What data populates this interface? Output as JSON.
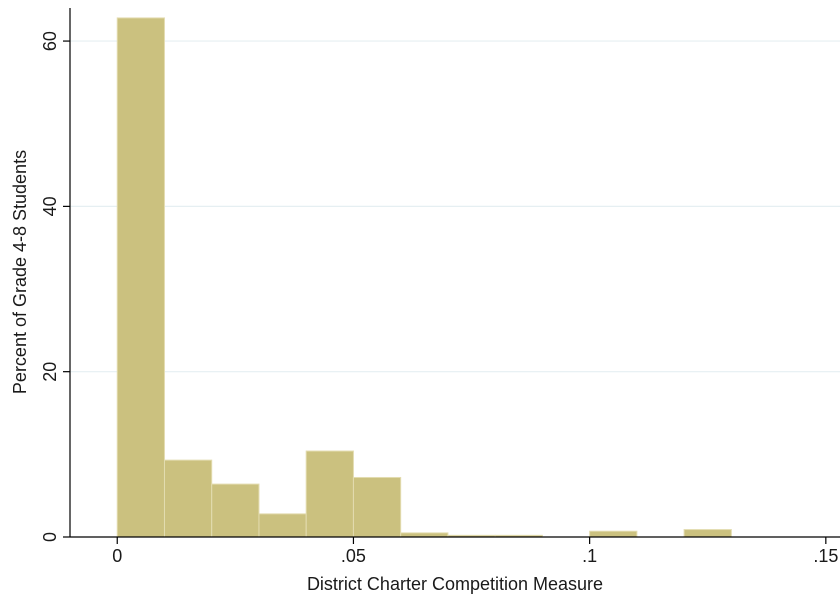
{
  "chart_data": {
    "type": "bar",
    "title": "",
    "xlabel": "District Charter Competition Measure",
    "ylabel": "Percent of Grade 4-8 Students",
    "xlim": [
      -0.01,
      0.153
    ],
    "ylim": [
      0,
      64
    ],
    "x_ticks": [
      0,
      0.05,
      0.1,
      0.15
    ],
    "x_tick_labels": [
      "0",
      ".05",
      ".1",
      ".15"
    ],
    "y_ticks": [
      0,
      20,
      40,
      60
    ],
    "y_tick_labels": [
      "0",
      "20",
      "40",
      "60"
    ],
    "grid": "horizontal",
    "bin_width": 0.01,
    "bins": [
      {
        "start": 0.0,
        "value": 62.8
      },
      {
        "start": 0.01,
        "value": 9.3
      },
      {
        "start": 0.02,
        "value": 6.4
      },
      {
        "start": 0.03,
        "value": 2.8
      },
      {
        "start": 0.04,
        "value": 10.4
      },
      {
        "start": 0.05,
        "value": 7.2
      },
      {
        "start": 0.06,
        "value": 0.5
      },
      {
        "start": 0.07,
        "value": 0.2
      },
      {
        "start": 0.08,
        "value": 0.2
      },
      {
        "start": 0.09,
        "value": 0.0
      },
      {
        "start": 0.1,
        "value": 0.7
      },
      {
        "start": 0.11,
        "value": 0.0
      },
      {
        "start": 0.12,
        "value": 0.9
      }
    ],
    "colors": {
      "bar_fill": "#cbc17f",
      "bar_stroke": "#e3dcb0",
      "grid": "#e6eff2",
      "axis": "#000000"
    }
  }
}
